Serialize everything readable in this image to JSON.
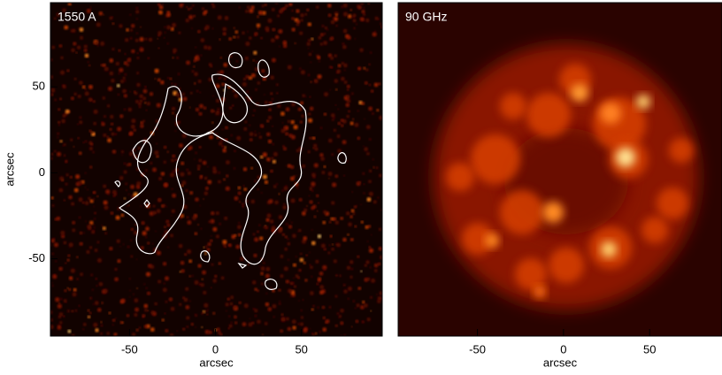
{
  "chart_data": [
    {
      "type": "image",
      "label": "1550 A",
      "xlabel": "arcsec",
      "ylabel": "arcsec",
      "xlim": [
        -96,
        97
      ],
      "ylim": [
        -95,
        99
      ],
      "xticks": [
        -50,
        0,
        50
      ],
      "yticks": [
        -50,
        0,
        50
      ]
    },
    {
      "type": "image",
      "label": "90 GHz",
      "xlabel": "arcsec",
      "xlim": [
        -96,
        92
      ],
      "xticks": [
        -50,
        0,
        50
      ]
    }
  ]
}
